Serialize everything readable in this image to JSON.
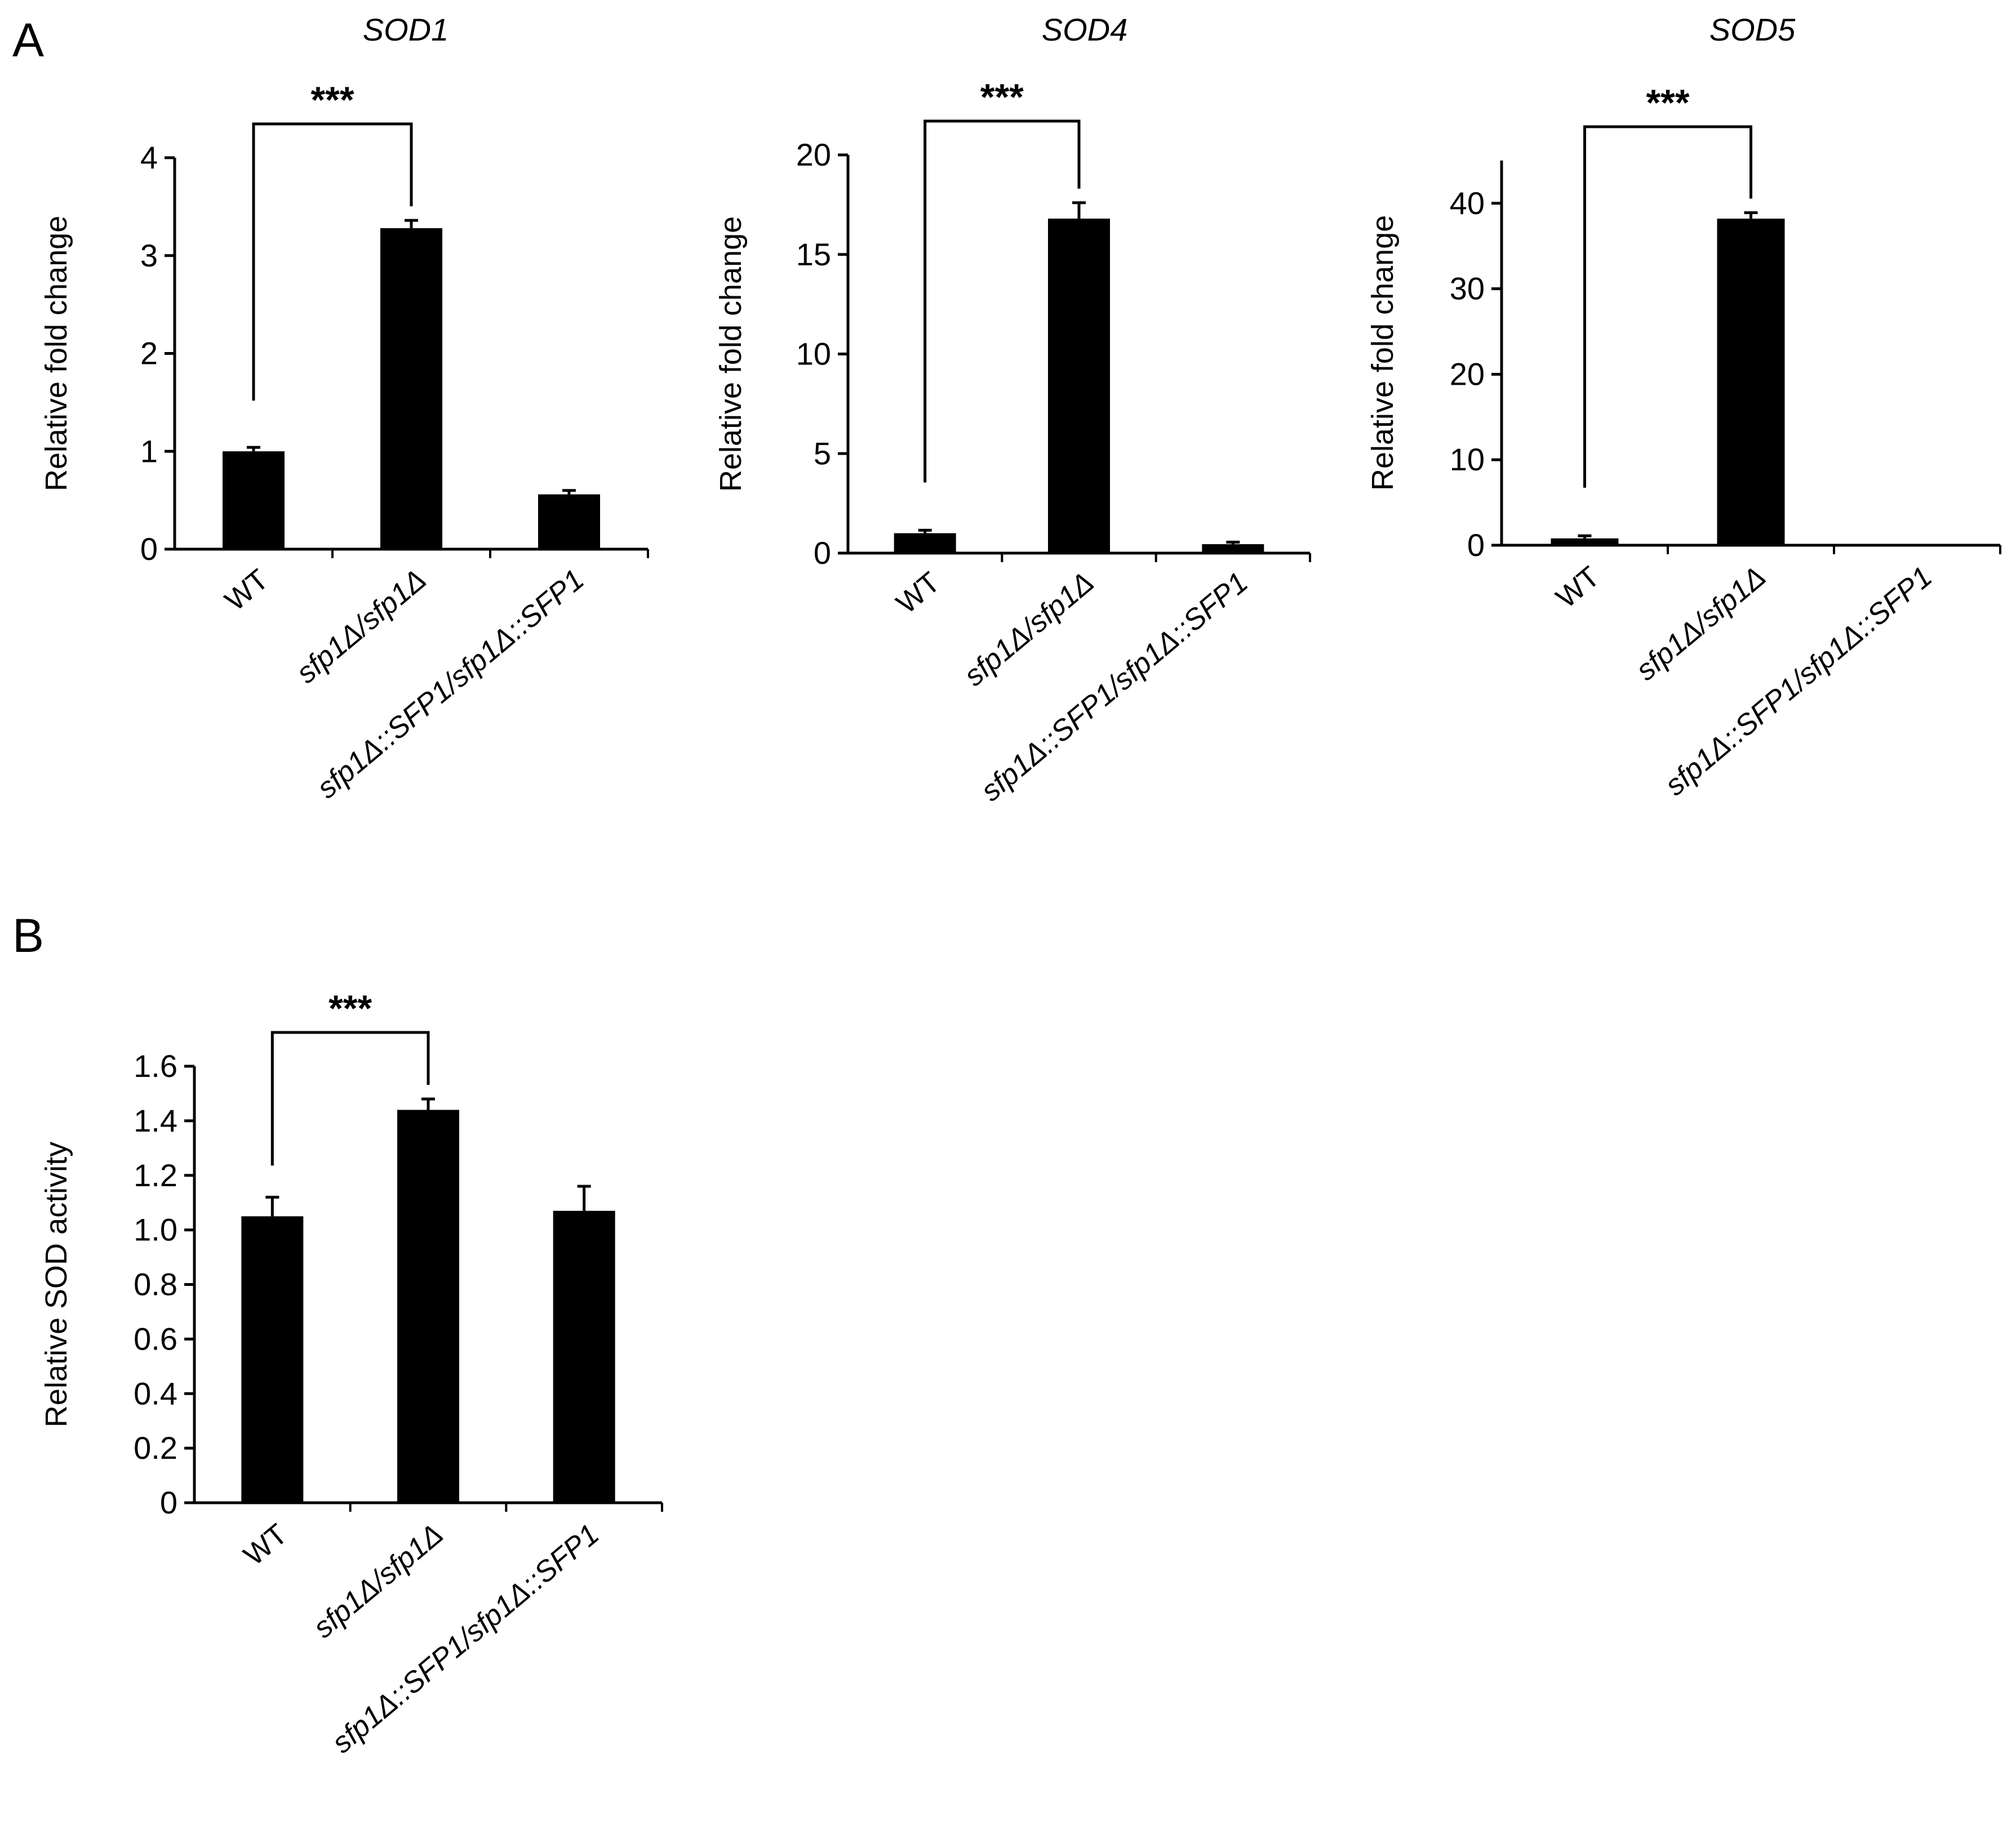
{
  "figure": {
    "panel_letters": [
      "A",
      "B"
    ],
    "colors": {
      "bar": "#000000",
      "axis": "#000000",
      "background": "#ffffff"
    }
  },
  "chart_data": [
    {
      "panel": "A",
      "type": "bar",
      "title": "SOD1",
      "ylabel": "Relative fold change",
      "xlabel": "",
      "categories": [
        "WT",
        "sfp1Δ/sfp1Δ",
        "sfp1Δ::SFP1/sfp1Δ::SFP1"
      ],
      "series": [
        {
          "values": [
            1.0,
            3.28,
            0.56
          ],
          "errors": [
            0.04,
            0.08,
            0.04
          ]
        }
      ],
      "ylim": [
        0,
        4
      ],
      "yticks": [
        0,
        1,
        2,
        3,
        4
      ],
      "ytick_labels": [
        "0",
        "1",
        "2",
        "3",
        "4"
      ],
      "grid": false,
      "significance": {
        "from": 0,
        "to": 1,
        "label": "***"
      }
    },
    {
      "panel": "A",
      "type": "bar",
      "title": "SOD4",
      "ylabel": "Relative fold change",
      "xlabel": "",
      "categories": [
        "WT",
        "sfp1Δ/sfp1Δ",
        "sfp1Δ::SFP1/sfp1Δ::SFP1"
      ],
      "series": [
        {
          "values": [
            1.0,
            16.8,
            0.45
          ],
          "errors": [
            0.15,
            0.8,
            0.1
          ]
        }
      ],
      "ylim": [
        0,
        20
      ],
      "yticks": [
        0,
        5,
        10,
        15,
        20
      ],
      "ytick_labels": [
        "0",
        "5",
        "10",
        "15",
        "20"
      ],
      "grid": false,
      "significance": {
        "from": 0,
        "to": 1,
        "label": "***"
      }
    },
    {
      "panel": "A",
      "type": "bar",
      "title": "SOD5",
      "ylabel": "Relative fold change",
      "xlabel": "",
      "categories": [
        "WT",
        "sfp1Δ/sfp1Δ",
        "sfp1Δ::SFP1/sfp1Δ::SFP1"
      ],
      "series": [
        {
          "values": [
            0.8,
            38.2,
            0.0
          ],
          "errors": [
            0.3,
            0.7,
            0.0
          ]
        }
      ],
      "ylim": [
        0,
        45
      ],
      "yticks": [
        0,
        10,
        20,
        30,
        40
      ],
      "ytick_labels": [
        "0",
        "10",
        "20",
        "30",
        "40"
      ],
      "grid": false,
      "significance": {
        "from": 0,
        "to": 1,
        "label": "***"
      }
    },
    {
      "panel": "B",
      "type": "bar",
      "title": "",
      "ylabel": "Relative SOD activity",
      "xlabel": "",
      "categories": [
        "WT",
        "sfp1Δ/sfp1Δ",
        "sfp1Δ::SFP1/sfp1Δ::SFP1"
      ],
      "series": [
        {
          "values": [
            1.05,
            1.44,
            1.07
          ],
          "errors": [
            0.07,
            0.04,
            0.09
          ]
        }
      ],
      "ylim": [
        0,
        1.6
      ],
      "yticks": [
        0,
        0.2,
        0.4,
        0.6,
        0.8,
        1.0,
        1.2,
        1.4,
        1.6
      ],
      "ytick_labels": [
        "0",
        "0.2",
        "0.4",
        "0.6",
        "0.8",
        "1.0",
        "1.2",
        "1.4",
        "1.6"
      ],
      "grid": false,
      "significance": {
        "from": 0,
        "to": 1,
        "label": "***"
      }
    }
  ]
}
